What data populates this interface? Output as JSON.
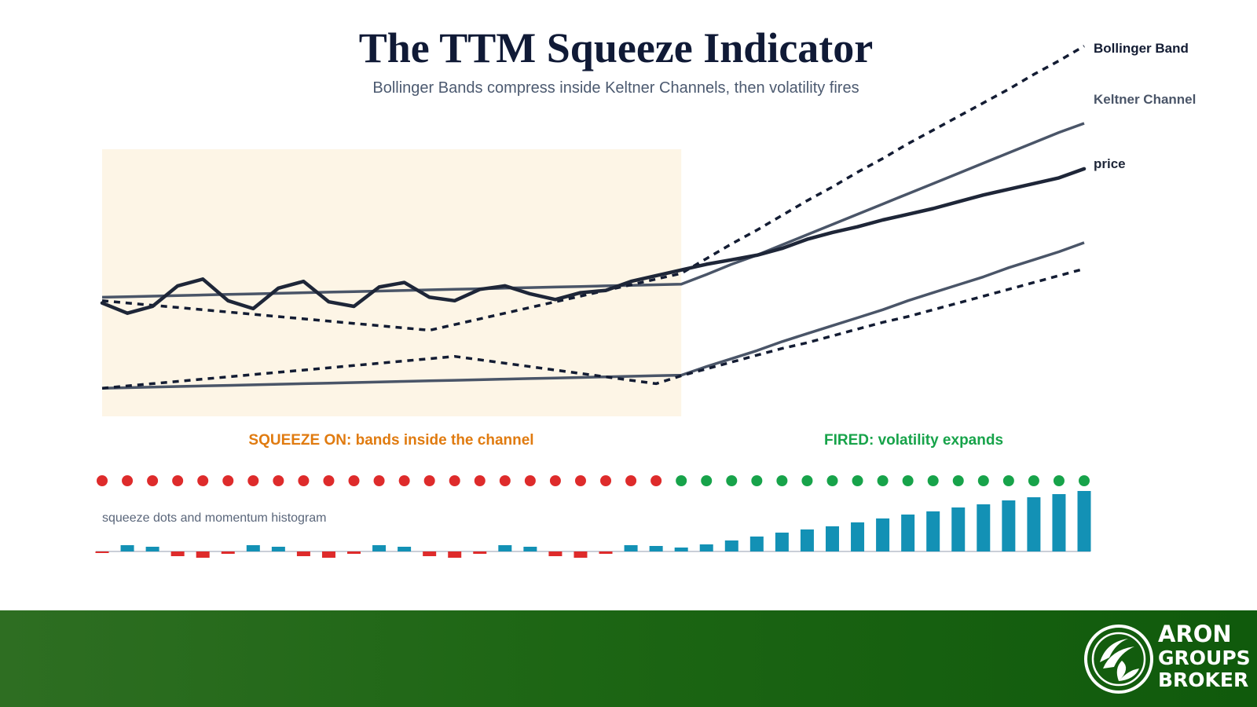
{
  "header": {
    "title": "The TTM Squeeze Indicator",
    "subtitle": "Bollinger Bands compress inside Keltner Channels, then volatility fires"
  },
  "legend": {
    "bollinger": "Bollinger Band",
    "keltner": "Keltner Channel",
    "price": "price"
  },
  "phases": {
    "squeeze_on": "SQUEEZE ON: bands inside the channel",
    "fired": "FIRED: volatility expands"
  },
  "histogram_caption": "squeeze dots and momentum histogram",
  "colors": {
    "squeeze_shade": "#fdf5e6",
    "keltner_line": "#4a5568",
    "bollinger_line": "#131c33",
    "price_line": "#1e2638",
    "dot_on": "#de2b2b",
    "dot_off": "#17a34a",
    "hist_positive": "#1391b5",
    "hist_negative": "#de2b2b",
    "squeeze_label": "#e07b10",
    "fired_label": "#17a34a",
    "footer": "#1d6614"
  },
  "brand": {
    "line1": "ARON",
    "line2": "GROUPS",
    "line3": "BROKER",
    "icon": "leaf-globe-icon"
  },
  "chart_data": {
    "type": "line",
    "x": [
      0,
      1,
      2,
      3,
      4,
      5,
      6,
      7,
      8,
      9,
      10,
      11,
      12,
      13,
      14,
      15,
      16,
      17,
      18,
      19,
      20,
      21,
      22,
      23,
      24,
      25,
      26,
      27,
      28,
      29,
      30,
      31,
      32,
      33,
      34,
      35,
      36,
      37,
      38,
      39
    ],
    "squeeze_end_index": 23,
    "series": [
      {
        "name": "price",
        "values": [
          -0.5,
          -1.4,
          -0.8,
          1.0,
          1.6,
          -0.3,
          -1.0,
          0.8,
          1.4,
          -0.4,
          -0.8,
          0.9,
          1.3,
          0.0,
          -0.3,
          0.7,
          1.0,
          0.3,
          -0.2,
          0.4,
          0.6,
          1.4,
          1.9,
          2.4,
          2.9,
          3.3,
          3.7,
          4.3,
          5.1,
          5.7,
          6.2,
          6.8,
          7.3,
          7.8,
          8.4,
          9.0,
          9.5,
          10.0,
          10.5,
          11.3
        ]
      },
      {
        "name": "Keltner Channel",
        "upper": [
          0.0,
          0.05,
          0.1,
          0.15,
          0.2,
          0.25,
          0.3,
          0.35,
          0.4,
          0.45,
          0.5,
          0.55,
          0.6,
          0.65,
          0.7,
          0.75,
          0.8,
          0.85,
          0.9,
          0.95,
          1.0,
          1.05,
          1.1,
          1.15,
          2.0,
          2.9,
          3.7,
          4.6,
          5.5,
          6.4,
          7.3,
          8.2,
          9.1,
          10.0,
          10.9,
          11.8,
          12.7,
          13.6,
          14.5,
          15.3
        ],
        "lower": [
          -8.0,
          -7.95,
          -7.9,
          -7.85,
          -7.8,
          -7.75,
          -7.7,
          -7.65,
          -7.6,
          -7.55,
          -7.5,
          -7.45,
          -7.4,
          -7.35,
          -7.3,
          -7.25,
          -7.2,
          -7.15,
          -7.1,
          -7.05,
          -7.0,
          -6.95,
          -6.9,
          -6.85,
          -6.1,
          -5.4,
          -4.7,
          -3.9,
          -3.2,
          -2.5,
          -1.8,
          -1.1,
          -0.3,
          0.4,
          1.1,
          1.8,
          2.6,
          3.3,
          4.0,
          4.8
        ]
      },
      {
        "name": "Bollinger Band",
        "upper": [
          -0.3,
          -0.5,
          -0.7,
          -0.9,
          -1.1,
          -1.3,
          -1.5,
          -1.7,
          -1.9,
          -2.1,
          -2.3,
          -2.5,
          -2.7,
          -2.9,
          -2.4,
          -1.9,
          -1.4,
          -0.9,
          -0.4,
          0.1,
          0.6,
          1.1,
          1.6,
          2.1,
          3.4,
          4.7,
          5.9,
          7.2,
          8.5,
          9.7,
          11.0,
          12.2,
          13.5,
          14.7,
          15.9,
          17.1,
          18.3,
          19.6,
          20.8,
          22.1
        ],
        "lower": [
          -8.0,
          -7.8,
          -7.6,
          -7.4,
          -7.2,
          -7.0,
          -6.8,
          -6.6,
          -6.4,
          -6.2,
          -6.0,
          -5.8,
          -5.6,
          -5.4,
          -5.2,
          -5.5,
          -5.8,
          -6.1,
          -6.4,
          -6.7,
          -7.0,
          -7.3,
          -7.6,
          -6.9,
          -6.3,
          -5.7,
          -5.1,
          -4.5,
          -4.0,
          -3.4,
          -2.8,
          -2.2,
          -1.7,
          -1.1,
          -0.5,
          0.1,
          0.7,
          1.3,
          1.9,
          2.5
        ]
      }
    ],
    "squeeze_dots": [
      "on",
      "on",
      "on",
      "on",
      "on",
      "on",
      "on",
      "on",
      "on",
      "on",
      "on",
      "on",
      "on",
      "on",
      "on",
      "on",
      "on",
      "on",
      "on",
      "on",
      "on",
      "on",
      "on",
      "off",
      "off",
      "off",
      "off",
      "off",
      "off",
      "off",
      "off",
      "off",
      "off",
      "off",
      "off",
      "off",
      "off",
      "off",
      "off",
      "off"
    ],
    "momentum": [
      -0.2,
      0.8,
      0.6,
      -0.6,
      -0.8,
      -0.3,
      0.8,
      0.6,
      -0.6,
      -0.8,
      -0.3,
      0.8,
      0.6,
      -0.6,
      -0.8,
      -0.3,
      0.8,
      0.6,
      -0.6,
      -0.8,
      -0.3,
      0.8,
      0.7,
      0.5,
      0.9,
      1.4,
      1.9,
      2.4,
      2.8,
      3.2,
      3.7,
      4.2,
      4.7,
      5.1,
      5.6,
      6.0,
      6.5,
      6.9,
      7.3,
      7.7
    ]
  }
}
